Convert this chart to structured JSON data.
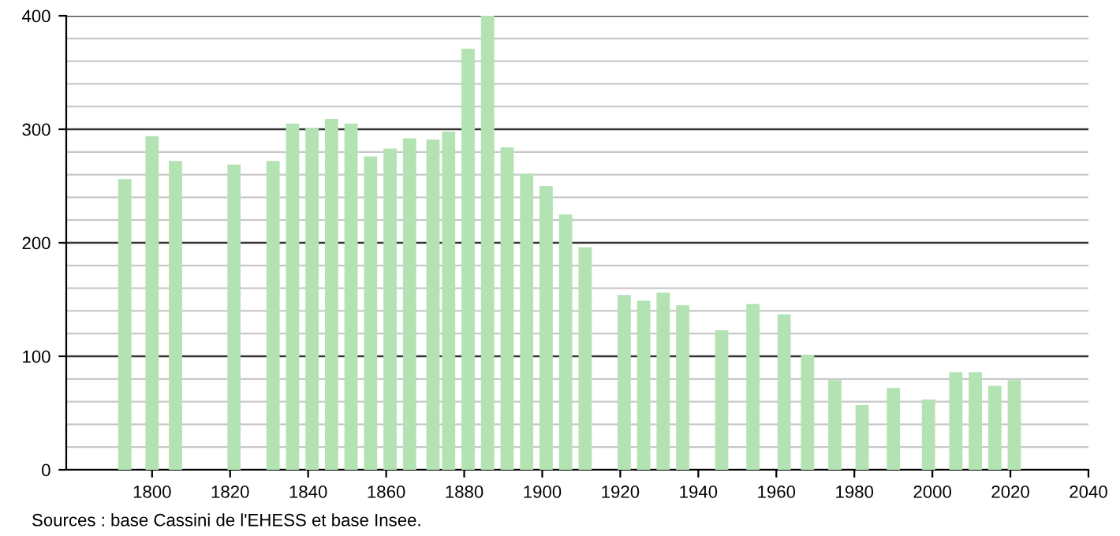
{
  "chart_data": {
    "type": "bar",
    "x": [
      1793,
      1800,
      1806,
      1821,
      1831,
      1836,
      1841,
      1846,
      1851,
      1856,
      1861,
      1866,
      1872,
      1876,
      1881,
      1886,
      1891,
      1896,
      1901,
      1906,
      1911,
      1921,
      1926,
      1931,
      1936,
      1946,
      1954,
      1962,
      1968,
      1975,
      1982,
      1990,
      1999,
      2006,
      2011,
      2016,
      2021
    ],
    "values": [
      256,
      294,
      272,
      269,
      272,
      305,
      301,
      309,
      305,
      276,
      283,
      292,
      291,
      298,
      371,
      400,
      284,
      261,
      250,
      225,
      196,
      154,
      149,
      156,
      145,
      123,
      146,
      137,
      101,
      79,
      57,
      72,
      62,
      86,
      86,
      74,
      79
    ],
    "color": "#b3e3b3",
    "xlim": [
      1778,
      2040
    ],
    "xticks": [
      1800,
      1820,
      1840,
      1860,
      1880,
      1900,
      1920,
      1940,
      1960,
      1980,
      2000,
      2020,
      2040
    ],
    "ylim": [
      0,
      400
    ],
    "yticks": [
      0,
      100,
      200,
      300,
      400
    ],
    "grid": "y",
    "annotations": [
      "Sources : base Cassini de l'EHESS et base Insee."
    ]
  }
}
